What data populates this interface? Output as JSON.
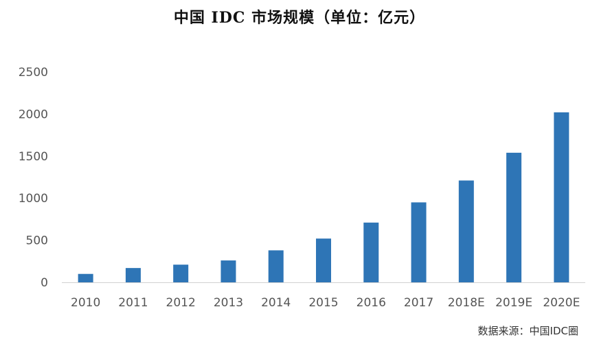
{
  "chart_data": {
    "type": "bar",
    "title": "中国 IDC 市场规模（单位：亿元）",
    "xlabel": "",
    "ylabel": "",
    "categories": [
      "2010",
      "2011",
      "2012",
      "2013",
      "2014",
      "2015",
      "2016",
      "2017",
      "2018E",
      "2019E",
      "2020E"
    ],
    "values": [
      100,
      170,
      210,
      260,
      380,
      520,
      710,
      950,
      1210,
      1540,
      2020
    ],
    "ylim": [
      0,
      2500
    ],
    "yticks": [
      0,
      500,
      1000,
      1500,
      2000,
      2500
    ],
    "grid": false,
    "legend": "none",
    "bar_color": "#2E75B6"
  },
  "source": "数据来源：中国IDC圈"
}
